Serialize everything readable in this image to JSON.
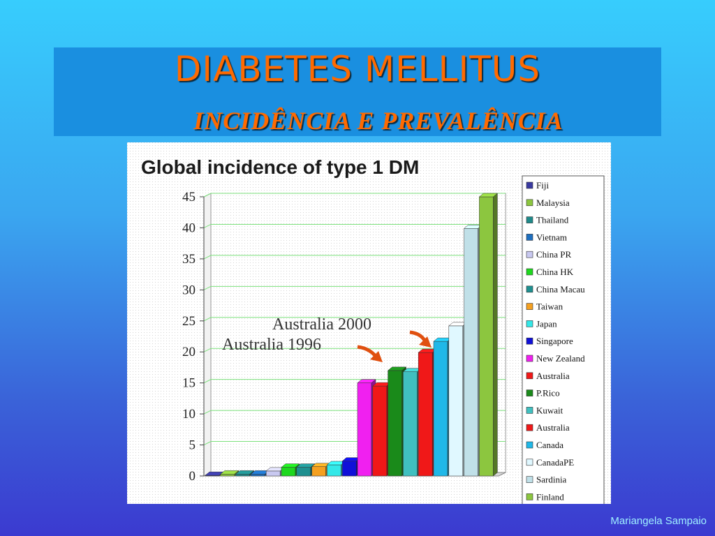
{
  "slide": {
    "title": "DIABETES MELLITUS",
    "subtitle": "INCIDÊNCIA E PREVALÊNCIA",
    "footer": "Mariangela Sampaio"
  },
  "colors": {
    "title": "#ff6a00",
    "title_band": "#1a8fe0"
  },
  "chart_data": {
    "type": "bar",
    "title": "Global incidence of type 1 DM",
    "xlabel": "",
    "ylabel": "",
    "ylim": [
      0,
      45
    ],
    "yticks": [
      0,
      5,
      10,
      15,
      20,
      25,
      30,
      35,
      40,
      45
    ],
    "grid": true,
    "legend_position": "right",
    "categories": [
      "Fiji",
      "Malaysia",
      "Thailand",
      "Vietnam",
      "China PR",
      "China HK",
      "China Macau",
      "Taiwan",
      "Japan",
      "Singapore",
      "New Zealand",
      "Australia",
      "P.Rico",
      "Kuwait",
      "Australia",
      "Canada",
      "CanadaPE",
      "Sardinia",
      "Finland"
    ],
    "series": [
      {
        "name": "Fiji",
        "value": 0.1,
        "color": "#3a3aa0"
      },
      {
        "name": "Malaysia",
        "value": 0.3,
        "color": "#8cc63f"
      },
      {
        "name": "Thailand",
        "value": 0.3,
        "color": "#1f8a8a"
      },
      {
        "name": "Vietnam",
        "value": 0.3,
        "color": "#1e6fc0"
      },
      {
        "name": "China PR",
        "value": 0.8,
        "color": "#c8c8f0"
      },
      {
        "name": "China HK",
        "value": 1.4,
        "color": "#1ed81e"
      },
      {
        "name": "China Macau",
        "value": 1.4,
        "color": "#1f9090"
      },
      {
        "name": "Taiwan",
        "value": 1.5,
        "color": "#f5a020"
      },
      {
        "name": "Japan",
        "value": 1.8,
        "color": "#33e8e8"
      },
      {
        "name": "Singapore",
        "value": 2.4,
        "color": "#1010d8"
      },
      {
        "name": "New Zealand",
        "value": 15.0,
        "color": "#f020f0"
      },
      {
        "name": "Australia",
        "value": 14.5,
        "color": "#f01818"
      },
      {
        "name": "P.Rico",
        "value": 17.0,
        "color": "#1a8a1a"
      },
      {
        "name": "Kuwait",
        "value": 16.8,
        "color": "#40c0c0"
      },
      {
        "name": "Australia",
        "value": 19.9,
        "color": "#f01818"
      },
      {
        "name": "Canada",
        "value": 21.7,
        "color": "#20b8e8"
      },
      {
        "name": "CanadaPE",
        "value": 24.2,
        "color": "#e0f8ff"
      },
      {
        "name": "Sardinia",
        "value": 39.9,
        "color": "#c0e0e8"
      },
      {
        "name": "Finland",
        "value": 45.0,
        "color": "#8cc63f"
      }
    ],
    "annotations": [
      {
        "text": "Australia 2000",
        "series_index": 14
      },
      {
        "text": "Australia 1996",
        "series_index": 11
      }
    ]
  }
}
